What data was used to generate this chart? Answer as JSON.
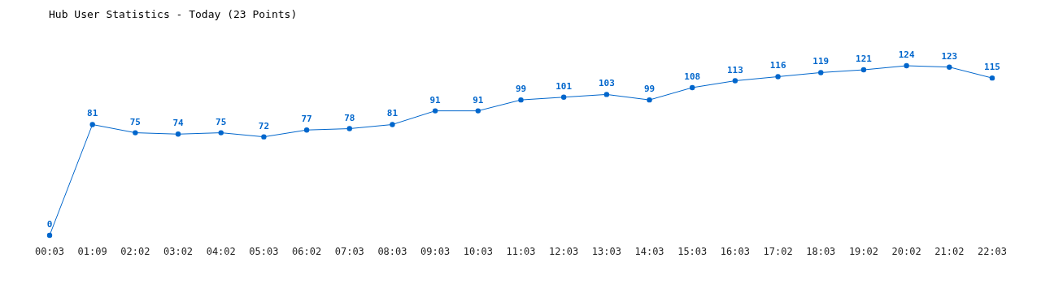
{
  "chart_data": {
    "type": "line",
    "title": "Hub User Statistics - Today (23 Points)",
    "categories": [
      "00:03",
      "01:09",
      "02:02",
      "03:02",
      "04:02",
      "05:03",
      "06:02",
      "07:03",
      "08:03",
      "09:03",
      "10:03",
      "11:03",
      "12:03",
      "13:03",
      "14:03",
      "15:03",
      "16:03",
      "17:02",
      "18:03",
      "19:02",
      "20:02",
      "21:02",
      "22:03"
    ],
    "series": [
      {
        "color": "#0066cc",
        "values": [
          0,
          81,
          75,
          74,
          75,
          72,
          77,
          78,
          81,
          91,
          91,
          99,
          101,
          103,
          99,
          108,
          113,
          116,
          119,
          121,
          124,
          123,
          115
        ]
      }
    ],
    "data_labels": true,
    "marker": "circle",
    "tick_labels": "x"
  }
}
